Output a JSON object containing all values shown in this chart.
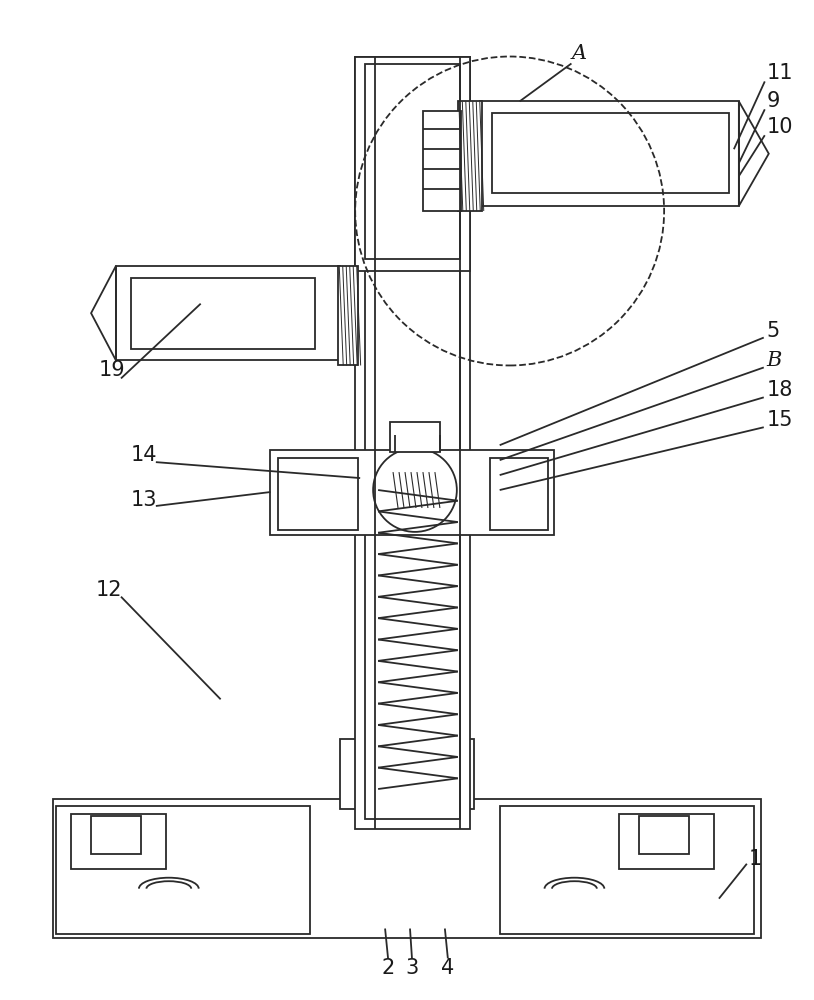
{
  "bg_color": "#ffffff",
  "line_color": "#2a2a2a",
  "lw": 1.3,
  "fig_width": 8.14,
  "fig_height": 10.0
}
